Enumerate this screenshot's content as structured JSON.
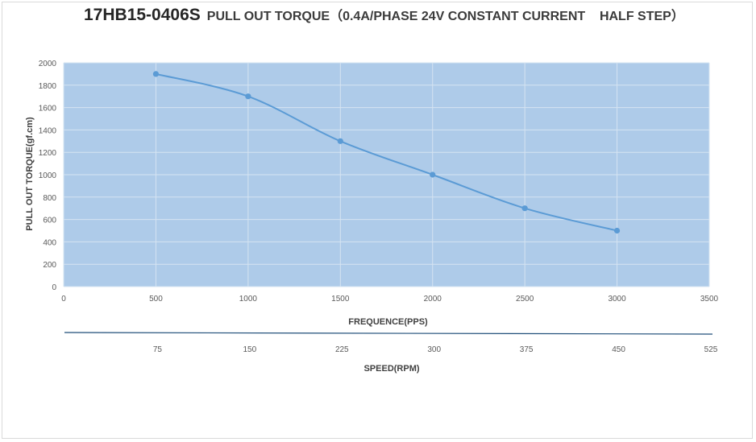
{
  "title": {
    "model": "17HB15-0406S",
    "description": "PULL OUT TORQUE（0.4A/PHASE 24V CONSTANT CURRENT    HALF STEP）"
  },
  "colors": {
    "plot_background": "#aecbe9",
    "grid": "#d6e4f2",
    "series": "#5b9bd5",
    "secondary_axis_line": "#1f4e79"
  },
  "chart_data": {
    "type": "line",
    "x": [
      500,
      1000,
      1500,
      2000,
      2500,
      3000
    ],
    "series": [
      {
        "values": [
          1900,
          1700,
          1300,
          1000,
          700,
          500
        ]
      }
    ],
    "xlabel": "FREQUENCE(PPS)",
    "ylabel": "PULL OUT TORQUE(gf.cm)",
    "xlim": [
      0,
      3500
    ],
    "ylim": [
      0,
      2000
    ],
    "x_ticks": [
      0,
      500,
      1000,
      1500,
      2000,
      2500,
      3000,
      3500
    ],
    "y_ticks": [
      0,
      200,
      400,
      600,
      800,
      1000,
      1200,
      1400,
      1600,
      1800,
      2000
    ],
    "grid": true,
    "line_style": "smooth",
    "markers": true,
    "secondary_axis": {
      "label": "SPEED(RPM)",
      "ticks": [
        {
          "at": 500,
          "label": "75"
        },
        {
          "at": 1000,
          "label": "150"
        },
        {
          "at": 1500,
          "label": "225"
        },
        {
          "at": 2000,
          "label": "300"
        },
        {
          "at": 2500,
          "label": "375"
        },
        {
          "at": 3000,
          "label": "450"
        },
        {
          "at": 3500,
          "label": "525"
        }
      ]
    }
  }
}
